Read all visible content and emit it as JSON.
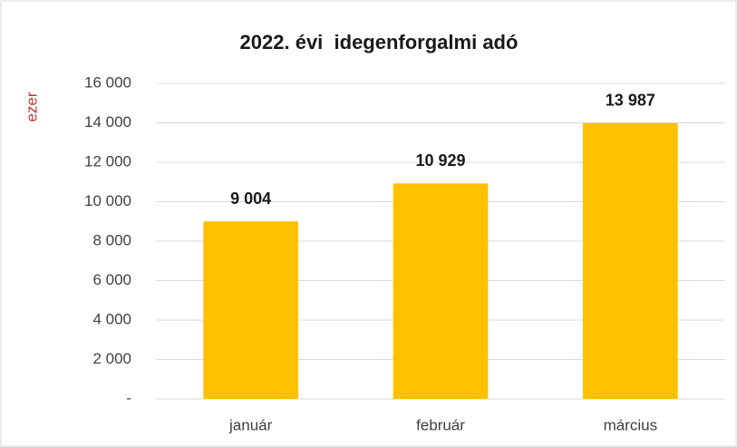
{
  "chart_data": {
    "type": "bar",
    "title": "2022. évi  idegenforgalmi adó",
    "y_label": "ezer",
    "categories": [
      "január",
      "február",
      "március"
    ],
    "values": [
      9004,
      10929,
      13987
    ],
    "value_labels": [
      "9 004",
      "10 929",
      "13 987"
    ],
    "color": "#ffc000",
    "ylim": [
      0,
      16000
    ],
    "yticks": [
      {
        "value": 0,
        "label": "-"
      },
      {
        "value": 2000,
        "label": "2 000"
      },
      {
        "value": 4000,
        "label": "4 000"
      },
      {
        "value": 6000,
        "label": "6 000"
      },
      {
        "value": 8000,
        "label": "8 000"
      },
      {
        "value": 10000,
        "label": "10 000"
      },
      {
        "value": 12000,
        "label": "12 000"
      },
      {
        "value": 14000,
        "label": "14 000"
      },
      {
        "value": 16000,
        "label": "16 000"
      }
    ],
    "grid": true
  }
}
